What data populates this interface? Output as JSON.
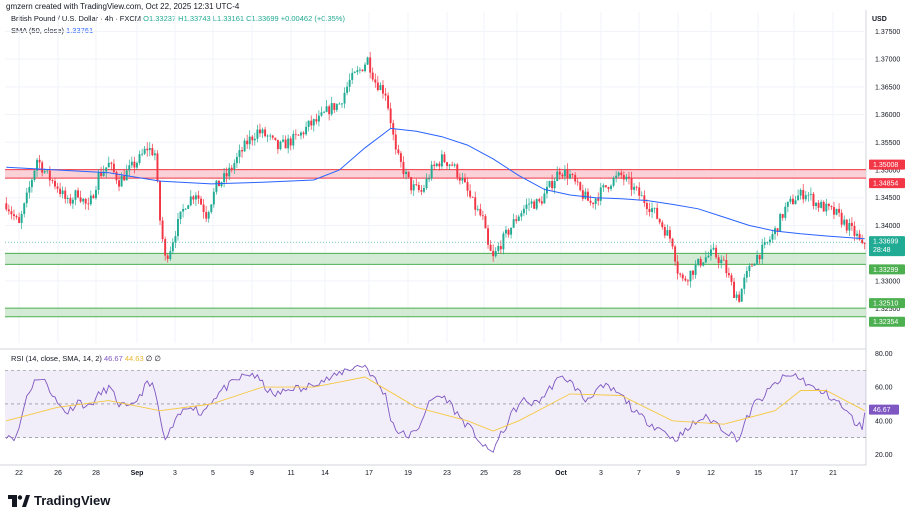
{
  "header": {
    "created": "gmzern created with TradingView.com, Oct 22, 2025 12:31 UTC-4",
    "symbol": "British Pound / U.S. Dollar · 4h · FXCM",
    "ohlc": "O1.33237 H1.33743 L1.33161 C1.33699 +0.00462 (+0.35%)",
    "sma_label": "SMA (50, close)",
    "sma_value": "1.33761",
    "currency": "USD"
  },
  "rsi_legend": {
    "label": "RSI (14, close, SMA, 14, 2)",
    "rsi_value": "46.67",
    "sma_value": "44.63",
    "extra": "∅ ∅"
  },
  "footer": {
    "brand": "TradingView"
  },
  "colors": {
    "up": "#22ab94",
    "down": "#f23645",
    "sma": "#2962ff",
    "rsi": "#7e57c2",
    "rsi_ma": "#f5c842",
    "resistance_zone": "#f7c6cc",
    "support_zone": "#c8e6c9"
  },
  "chart_data": [
    {
      "type": "candlestick",
      "title": "",
      "x_ticks": [
        "22",
        "26",
        "28",
        "Sep",
        "3",
        "5",
        "9",
        "11",
        "14",
        "17",
        "19",
        "23",
        "25",
        "28",
        "Oct",
        "3",
        "7",
        "9",
        "12",
        "15",
        "17",
        "21"
      ],
      "y_ticks": [
        "1.37500",
        "1.37000",
        "1.36500",
        "1.36000",
        "1.35500",
        "1.35000",
        "1.34500",
        "1.34000",
        "1.33500",
        "1.33000",
        "1.32500"
      ],
      "ylim": [
        1.3188,
        1.3785
      ],
      "zones": [
        {
          "kind": "resistance",
          "top": 1.35008,
          "bottom": 1.34854,
          "labels": [
            "1.35008",
            "1.34854"
          ]
        },
        {
          "kind": "support",
          "top": 1.33496,
          "bottom": 1.33299,
          "labels": [
            "1.33496",
            "1.33299"
          ]
        },
        {
          "kind": "support",
          "top": 1.3251,
          "bottom": 1.32354,
          "labels": [
            "1.32510",
            "1.32354"
          ]
        }
      ],
      "price_label": {
        "value": "1.33699",
        "countdown": "28:48"
      },
      "close_path": [
        [
          0,
          1.344
        ],
        [
          5,
          1.34
        ],
        [
          8,
          1.345
        ],
        [
          12,
          1.352
        ],
        [
          16,
          1.349
        ],
        [
          20,
          1.347
        ],
        [
          24,
          1.344
        ],
        [
          28,
          1.346
        ],
        [
          32,
          1.343
        ],
        [
          36,
          1.349
        ],
        [
          40,
          1.351
        ],
        [
          44,
          1.348
        ],
        [
          48,
          1.35
        ],
        [
          52,
          1.352
        ],
        [
          55,
          1.354
        ],
        [
          58,
          1.353
        ],
        [
          60,
          1.341
        ],
        [
          62,
          1.334
        ],
        [
          64,
          1.336
        ],
        [
          66,
          1.339
        ],
        [
          70,
          1.344
        ],
        [
          74,
          1.346
        ],
        [
          78,
          1.342
        ],
        [
          82,
          1.347
        ],
        [
          86,
          1.349
        ],
        [
          90,
          1.352
        ],
        [
          94,
          1.355
        ],
        [
          98,
          1.357
        ],
        [
          102,
          1.356
        ],
        [
          106,
          1.354
        ],
        [
          110,
          1.355
        ],
        [
          114,
          1.356
        ],
        [
          118,
          1.358
        ],
        [
          122,
          1.359
        ],
        [
          126,
          1.361
        ],
        [
          130,
          1.362
        ],
        [
          134,
          1.366
        ],
        [
          138,
          1.368
        ],
        [
          141,
          1.37
        ],
        [
          144,
          1.366
        ],
        [
          148,
          1.364
        ],
        [
          150,
          1.359
        ],
        [
          152,
          1.353
        ],
        [
          155,
          1.35
        ],
        [
          158,
          1.347
        ],
        [
          162,
          1.346
        ],
        [
          166,
          1.35
        ],
        [
          170,
          1.352
        ],
        [
          174,
          1.351
        ],
        [
          178,
          1.348
        ],
        [
          182,
          1.344
        ],
        [
          186,
          1.341
        ],
        [
          188,
          1.336
        ],
        [
          190,
          1.334
        ],
        [
          192,
          1.336
        ],
        [
          196,
          1.339
        ],
        [
          200,
          1.342
        ],
        [
          204,
          1.344
        ],
        [
          208,
          1.344
        ],
        [
          212,
          1.347
        ],
        [
          216,
          1.35
        ],
        [
          220,
          1.349
        ],
        [
          224,
          1.346
        ],
        [
          228,
          1.344
        ],
        [
          232,
          1.346
        ],
        [
          236,
          1.348
        ],
        [
          240,
          1.349
        ],
        [
          244,
          1.347
        ],
        [
          248,
          1.345
        ],
        [
          252,
          1.343
        ],
        [
          256,
          1.34
        ],
        [
          260,
          1.337
        ],
        [
          262,
          1.332
        ],
        [
          264,
          1.33
        ],
        [
          268,
          1.332
        ],
        [
          272,
          1.334
        ],
        [
          276,
          1.335
        ],
        [
          280,
          1.333
        ],
        [
          284,
          1.328
        ],
        [
          286,
          1.327
        ],
        [
          288,
          1.33
        ],
        [
          292,
          1.334
        ],
        [
          296,
          1.336
        ],
        [
          300,
          1.339
        ],
        [
          304,
          1.343
        ],
        [
          308,
          1.345
        ],
        [
          312,
          1.346
        ],
        [
          316,
          1.344
        ],
        [
          320,
          1.343
        ],
        [
          324,
          1.342
        ],
        [
          328,
          1.34
        ],
        [
          332,
          1.338
        ],
        [
          334,
          1.336
        ],
        [
          335,
          1.337
        ]
      ],
      "sma_path": [
        [
          0,
          1.3505
        ],
        [
          20,
          1.35
        ],
        [
          40,
          1.3495
        ],
        [
          60,
          1.348
        ],
        [
          80,
          1.3475
        ],
        [
          100,
          1.3478
        ],
        [
          120,
          1.3482
        ],
        [
          130,
          1.35
        ],
        [
          140,
          1.354
        ],
        [
          150,
          1.3575
        ],
        [
          160,
          1.357
        ],
        [
          170,
          1.356
        ],
        [
          180,
          1.3545
        ],
        [
          190,
          1.352
        ],
        [
          200,
          1.349
        ],
        [
          210,
          1.3465
        ],
        [
          220,
          1.3455
        ],
        [
          230,
          1.345
        ],
        [
          240,
          1.3448
        ],
        [
          250,
          1.3445
        ],
        [
          260,
          1.3438
        ],
        [
          270,
          1.343
        ],
        [
          280,
          1.3415
        ],
        [
          290,
          1.34
        ],
        [
          300,
          1.339
        ],
        [
          310,
          1.3385
        ],
        [
          320,
          1.3381
        ],
        [
          335,
          1.3376
        ]
      ]
    },
    {
      "type": "line",
      "title": "",
      "y_ticks": [
        "80.00",
        "60.00",
        "40.00",
        "20.00"
      ],
      "ylim": [
        15,
        82
      ],
      "bands": {
        "upper": 70,
        "middle": 50,
        "lower": 30
      },
      "series": [
        {
          "values_path": [
            [
              0,
              32
            ],
            [
              4,
              30
            ],
            [
              8,
              55
            ],
            [
              12,
              66
            ],
            [
              16,
              62
            ],
            [
              20,
              50
            ],
            [
              24,
              45
            ],
            [
              28,
              52
            ],
            [
              32,
              48
            ],
            [
              36,
              55
            ],
            [
              40,
              60
            ],
            [
              44,
              50
            ],
            [
              48,
              47
            ],
            [
              52,
              55
            ],
            [
              55,
              62
            ],
            [
              58,
              60
            ],
            [
              60,
              40
            ],
            [
              62,
              28
            ],
            [
              64,
              34
            ],
            [
              68,
              44
            ],
            [
              72,
              50
            ],
            [
              76,
              44
            ],
            [
              80,
              52
            ],
            [
              84,
              58
            ],
            [
              88,
              62
            ],
            [
              92,
              66
            ],
            [
              96,
              68
            ],
            [
              100,
              62
            ],
            [
              104,
              55
            ],
            [
              108,
              57
            ],
            [
              112,
              60
            ],
            [
              116,
              58
            ],
            [
              120,
              63
            ],
            [
              124,
              64
            ],
            [
              128,
              66
            ],
            [
              132,
              70
            ],
            [
              136,
              72
            ],
            [
              140,
              73
            ],
            [
              144,
              64
            ],
            [
              148,
              55
            ],
            [
              150,
              42
            ],
            [
              152,
              35
            ],
            [
              156,
              31
            ],
            [
              160,
              33
            ],
            [
              164,
              48
            ],
            [
              168,
              55
            ],
            [
              172,
              53
            ],
            [
              176,
              44
            ],
            [
              180,
              37
            ],
            [
              184,
              30
            ],
            [
              186,
              25
            ],
            [
              188,
              22
            ],
            [
              190,
              23
            ],
            [
              194,
              34
            ],
            [
              198,
              46
            ],
            [
              202,
              52
            ],
            [
              206,
              50
            ],
            [
              210,
              55
            ],
            [
              214,
              63
            ],
            [
              218,
              66
            ],
            [
              222,
              60
            ],
            [
              226,
              52
            ],
            [
              230,
              58
            ],
            [
              234,
              60
            ],
            [
              238,
              57
            ],
            [
              242,
              52
            ],
            [
              246,
              44
            ],
            [
              250,
              40
            ],
            [
              254,
              36
            ],
            [
              258,
              33
            ],
            [
              260,
              29
            ],
            [
              264,
              32
            ],
            [
              268,
              38
            ],
            [
              272,
              42
            ],
            [
              276,
              40
            ],
            [
              280,
              35
            ],
            [
              284,
              31
            ],
            [
              286,
              29
            ],
            [
              288,
              38
            ],
            [
              292,
              50
            ],
            [
              296,
              55
            ],
            [
              300,
              62
            ],
            [
              304,
              66
            ],
            [
              308,
              67
            ],
            [
              312,
              63
            ],
            [
              316,
              58
            ],
            [
              320,
              56
            ],
            [
              324,
              52
            ],
            [
              328,
              45
            ],
            [
              332,
              38
            ],
            [
              334,
              36
            ],
            [
              335,
              46
            ]
          ]
        },
        {
          "values_path": [
            [
              0,
              40
            ],
            [
              20,
              48
            ],
            [
              40,
              52
            ],
            [
              60,
              46
            ],
            [
              80,
              50
            ],
            [
              100,
              60
            ],
            [
              120,
              60
            ],
            [
              140,
              66
            ],
            [
              160,
              48
            ],
            [
              180,
              40
            ],
            [
              190,
              34
            ],
            [
              200,
              40
            ],
            [
              220,
              56
            ],
            [
              240,
              55
            ],
            [
              260,
              40
            ],
            [
              280,
              38
            ],
            [
              300,
              46
            ],
            [
              310,
              58
            ],
            [
              320,
              58
            ],
            [
              335,
              46
            ]
          ]
        }
      ],
      "y_labels_current": [
        "46.67",
        "44.63"
      ]
    }
  ]
}
